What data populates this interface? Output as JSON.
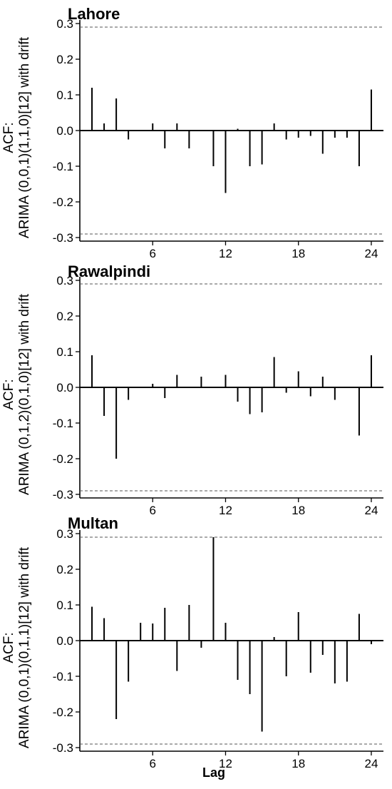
{
  "xlabel": "Lag",
  "chart_data": [
    {
      "type": "bar",
      "title": "Lahore",
      "ylabel_line1": "ACF:",
      "ylabel_line2": "ARIMA (0,0,1)(1,1,0)[12] with drift",
      "xlabel": "",
      "ylim": [
        -0.31,
        0.31
      ],
      "xlim": [
        0,
        25
      ],
      "yticks": [
        "0.3",
        "0.2",
        "0.1",
        "0.0",
        "-0.1",
        "-0.2",
        "-0.3"
      ],
      "xticks": [
        "6",
        "12",
        "18",
        "24"
      ],
      "ci": 0.29,
      "lags": [
        1,
        2,
        3,
        4,
        5,
        6,
        7,
        8,
        9,
        10,
        11,
        12,
        13,
        14,
        15,
        16,
        17,
        18,
        19,
        20,
        21,
        22,
        23,
        24
      ],
      "values": [
        0.12,
        0.02,
        0.09,
        -0.025,
        0.0,
        0.02,
        -0.05,
        0.02,
        -0.05,
        0.0,
        -0.1,
        -0.175,
        0.005,
        -0.1,
        -0.095,
        0.02,
        -0.025,
        -0.02,
        -0.015,
        -0.065,
        -0.02,
        -0.02,
        -0.1,
        0.115
      ]
    },
    {
      "type": "bar",
      "title": "Rawalpindi",
      "ylabel_line1": "ACF:",
      "ylabel_line2": "ARIMA (0,1,2)(0,1,0)[12] with drift",
      "xlabel": "",
      "ylim": [
        -0.31,
        0.31
      ],
      "xlim": [
        0,
        25
      ],
      "yticks": [
        "0.3",
        "0.2",
        "0.1",
        "0.0",
        "-0.1",
        "-0.2",
        "-0.3"
      ],
      "xticks": [
        "6",
        "12",
        "18",
        "24"
      ],
      "ci": 0.29,
      "lags": [
        1,
        2,
        3,
        4,
        5,
        6,
        7,
        8,
        9,
        10,
        11,
        12,
        13,
        14,
        15,
        16,
        17,
        18,
        19,
        20,
        21,
        22,
        23,
        24
      ],
      "values": [
        0.09,
        -0.08,
        -0.2,
        -0.035,
        0.0,
        0.01,
        -0.03,
        0.035,
        0.0,
        0.03,
        0.0,
        0.035,
        -0.04,
        -0.075,
        -0.07,
        0.085,
        -0.015,
        0.045,
        -0.025,
        0.03,
        -0.035,
        0.0,
        -0.135,
        0.09
      ]
    },
    {
      "type": "bar",
      "title": "Multan",
      "ylabel_line1": "ACF:",
      "ylabel_line2": "ARIMA (0,0,1)(0,1,1)[12] with drift",
      "xlabel": "Lag",
      "ylim": [
        -0.31,
        0.31
      ],
      "xlim": [
        0,
        25
      ],
      "yticks": [
        "0.3",
        "0.2",
        "0.1",
        "0.0",
        "-0.1",
        "-0.2",
        "-0.3"
      ],
      "xticks": [
        "6",
        "12",
        "18",
        "24"
      ],
      "ci": 0.29,
      "lags": [
        1,
        2,
        3,
        4,
        5,
        6,
        7,
        8,
        9,
        10,
        11,
        12,
        13,
        14,
        15,
        16,
        17,
        18,
        19,
        20,
        21,
        22,
        23,
        24
      ],
      "values": [
        0.095,
        0.063,
        -0.22,
        -0.115,
        0.05,
        0.048,
        0.092,
        -0.085,
        0.1,
        -0.02,
        0.29,
        0.05,
        -0.11,
        -0.15,
        -0.255,
        0.01,
        -0.1,
        0.08,
        -0.09,
        -0.04,
        -0.12,
        -0.115,
        0.075,
        -0.01
      ]
    }
  ]
}
